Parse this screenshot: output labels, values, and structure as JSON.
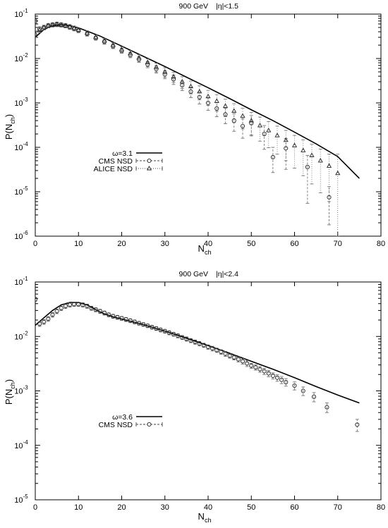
{
  "chart_data": [
    {
      "type": "line",
      "title": "900 GeV",
      "subtitle": "|η|<1.5",
      "xlabel": "N",
      "xlabel_sub": "ch",
      "ylabel": "P(N",
      "ylabel_sub": "ch",
      "ylabel_tail": ")",
      "xlim": [
        0,
        80
      ],
      "ylim": [
        1e-06,
        0.1
      ],
      "yscale": "log",
      "xticks": [
        "0",
        "10",
        "20",
        "30",
        "40",
        "50",
        "60",
        "70",
        "80"
      ],
      "yticks": [
        {
          "base": "10",
          "exp": "-1"
        },
        {
          "base": "10",
          "exp": "-2"
        },
        {
          "base": "10",
          "exp": "-3"
        },
        {
          "base": "10",
          "exp": "-4"
        },
        {
          "base": "10",
          "exp": "-5"
        },
        {
          "base": "10",
          "exp": "-6"
        }
      ],
      "legend_position": "left",
      "series": [
        {
          "name": "ω=3.1",
          "style": "solid-line",
          "x": [
            0,
            2,
            4,
            6,
            8,
            10,
            15,
            20,
            25,
            30,
            35,
            40,
            45,
            50,
            55,
            60,
            65,
            70,
            75
          ],
          "y": [
            0.03,
            0.045,
            0.055,
            0.058,
            0.055,
            0.049,
            0.032,
            0.019,
            0.0112,
            0.0066,
            0.0038,
            0.0022,
            0.00125,
            0.0007,
            0.0004,
            0.00022,
            0.00012,
            6.2e-05,
            2e-05
          ]
        },
        {
          "name": "CMS NSD",
          "style": "circle-dashed",
          "x": [
            0,
            1,
            2,
            3,
            4,
            5,
            6,
            7,
            8,
            9,
            10,
            12,
            14,
            16,
            18,
            20,
            22,
            24,
            26,
            28,
            30,
            32,
            34,
            36,
            38,
            40,
            42,
            44,
            46,
            48,
            50,
            53,
            55,
            58,
            63,
            68
          ],
          "y": [
            0.07,
            0.046,
            0.05,
            0.055,
            0.058,
            0.06,
            0.058,
            0.055,
            0.051,
            0.047,
            0.043,
            0.036,
            0.029,
            0.024,
            0.019,
            0.015,
            0.012,
            0.0096,
            0.0074,
            0.0058,
            0.0044,
            0.0034,
            0.0025,
            0.0018,
            0.00135,
            0.001,
            0.00075,
            0.00055,
            0.0004,
            0.0003,
            0.00035,
            0.0002,
            6e-05,
            9.5e-05,
            3.6e-05,
            7.5e-06
          ],
          "err_low": [
            0.062,
            0.04,
            0.044,
            0.049,
            0.052,
            0.054,
            0.052,
            0.049,
            0.045,
            0.042,
            0.038,
            0.032,
            0.026,
            0.021,
            0.0167,
            0.0131,
            0.0104,
            0.0082,
            0.0062,
            0.0047,
            0.0035,
            0.0026,
            0.0019,
            0.00132,
            0.00095,
            0.00068,
            0.00049,
            0.00034,
            0.00023,
            0.00016,
            0.00018,
            9e-05,
            2.7e-05,
            3.2e-05,
            5.5e-06,
            1.8e-06
          ],
          "err_high": [
            0.078,
            0.052,
            0.056,
            0.061,
            0.064,
            0.066,
            0.064,
            0.061,
            0.057,
            0.052,
            0.048,
            0.04,
            0.032,
            0.027,
            0.0213,
            0.0169,
            0.0136,
            0.011,
            0.0086,
            0.0069,
            0.0053,
            0.0042,
            0.0031,
            0.00228,
            0.00175,
            0.00132,
            0.00101,
            0.00076,
            0.00057,
            0.00044,
            0.00052,
            0.00031,
            0.0001,
            0.000158,
            6.6e-05,
            1.3e-05
          ]
        },
        {
          "name": "ALICE NSD",
          "style": "triangle-dotted",
          "x": [
            0,
            1,
            2,
            3,
            4,
            5,
            6,
            7,
            8,
            9,
            10,
            12,
            14,
            16,
            18,
            20,
            22,
            24,
            26,
            28,
            30,
            32,
            34,
            36,
            38,
            40,
            42,
            44,
            46,
            48,
            50,
            52,
            54,
            56,
            58,
            60,
            62,
            64,
            66,
            68,
            70
          ],
          "y": [
            0.036,
            0.044,
            0.05,
            0.055,
            0.057,
            0.058,
            0.057,
            0.055,
            0.052,
            0.048,
            0.044,
            0.037,
            0.03,
            0.025,
            0.02,
            0.016,
            0.013,
            0.0104,
            0.0082,
            0.0064,
            0.005,
            0.0039,
            0.003,
            0.00235,
            0.0018,
            0.0014,
            0.0011,
            0.00085,
            0.00066,
            0.00051,
            0.0004,
            0.00031,
            0.00024,
            0.000185,
            0.000145,
            0.00011,
            8.5e-05,
            6.6e-05,
            5e-05,
            3.8e-05,
            2.6e-05
          ],
          "err_low": [
            0.03,
            0.038,
            0.044,
            0.049,
            0.051,
            0.052,
            0.051,
            0.049,
            0.046,
            0.042,
            0.039,
            0.032,
            0.026,
            0.0215,
            0.0172,
            0.0136,
            0.0109,
            0.0086,
            0.0066,
            0.005,
            0.0038,
            0.0029,
            0.0021,
            0.0016,
            0.00118,
            0.00088,
            0.00066,
            0.00049,
            0.00036,
            0.00026,
            0.00019,
            0.000138,
            9.8e-05,
            7e-05,
            5e-05,
            3.4e-05,
            2.3e-05,
            1.5e-05,
            9.5e-06,
            6e-06,
            1e-06
          ],
          "err_high": [
            0.042,
            0.05,
            0.056,
            0.061,
            0.063,
            0.064,
            0.063,
            0.061,
            0.058,
            0.054,
            0.049,
            0.042,
            0.034,
            0.0285,
            0.0228,
            0.0184,
            0.0151,
            0.0122,
            0.0098,
            0.0078,
            0.0062,
            0.0049,
            0.0039,
            0.0031,
            0.00242,
            0.00192,
            0.00154,
            0.00121,
            0.00096,
            0.00076,
            0.00061,
            0.00048,
            0.00038,
            0.0003,
            0.00024,
            0.000186,
            0.000147,
            0.000117,
            9.1e-05,
            7e-05,
            7e-05
          ]
        }
      ]
    },
    {
      "type": "line",
      "title": "900 GeV",
      "subtitle": "|η|<2.4",
      "xlabel": "N",
      "xlabel_sub": "ch",
      "ylabel": "P(N",
      "ylabel_sub": "ch",
      "ylabel_tail": ")",
      "xlim": [
        0,
        80
      ],
      "ylim": [
        1e-05,
        0.1
      ],
      "yscale": "log",
      "xticks": [
        "0",
        "10",
        "20",
        "30",
        "40",
        "50",
        "60",
        "70",
        "80"
      ],
      "yticks": [
        {
          "base": "10",
          "exp": "-1"
        },
        {
          "base": "10",
          "exp": "-2"
        },
        {
          "base": "10",
          "exp": "-3"
        },
        {
          "base": "10",
          "exp": "-4"
        },
        {
          "base": "10",
          "exp": "-5"
        }
      ],
      "legend_position": "left",
      "series": [
        {
          "name": "ω=3.6",
          "style": "solid-line",
          "x": [
            0,
            2,
            4,
            6,
            8,
            10,
            12,
            14,
            16,
            18,
            20,
            25,
            30,
            35,
            40,
            45,
            50,
            55,
            60,
            65,
            70,
            75
          ],
          "y": [
            0.016,
            0.022,
            0.03,
            0.038,
            0.042,
            0.042,
            0.038,
            0.031,
            0.026,
            0.023,
            0.021,
            0.0165,
            0.0125,
            0.0093,
            0.0068,
            0.0049,
            0.0035,
            0.0025,
            0.00175,
            0.0012,
            0.00084,
            0.0006
          ]
        },
        {
          "name": "CMS NSD",
          "style": "circle-dashed",
          "x": [
            0,
            1,
            2,
            3,
            4,
            5,
            6,
            7,
            8,
            9,
            10,
            11,
            12,
            13,
            14,
            15,
            16,
            17,
            18,
            19,
            20,
            21,
            22,
            23,
            24,
            25,
            26,
            27,
            28,
            29,
            30,
            31,
            32,
            33,
            34,
            35,
            36,
            37,
            38,
            39,
            40,
            41,
            42,
            43,
            44,
            45,
            46,
            47,
            48,
            49,
            50,
            51,
            52,
            53,
            54,
            55,
            56,
            57,
            58,
            60,
            62,
            64.5,
            67.5,
            74.5
          ],
          "y": [
            0.048,
            0.017,
            0.0185,
            0.021,
            0.025,
            0.029,
            0.033,
            0.036,
            0.038,
            0.039,
            0.039,
            0.038,
            0.036,
            0.033,
            0.031,
            0.029,
            0.027,
            0.025,
            0.0235,
            0.0225,
            0.0215,
            0.0205,
            0.0195,
            0.0185,
            0.0175,
            0.0166,
            0.0157,
            0.0148,
            0.014,
            0.0132,
            0.0125,
            0.0117,
            0.011,
            0.0103,
            0.0096,
            0.009,
            0.0084,
            0.0079,
            0.0074,
            0.0069,
            0.0064,
            0.006,
            0.0056,
            0.0052,
            0.0048,
            0.0044,
            0.0041,
            0.0038,
            0.0035,
            0.0032,
            0.0029,
            0.0027,
            0.0025,
            0.0023,
            0.0021,
            0.0019,
            0.00175,
            0.0016,
            0.00145,
            0.00125,
            0.001,
            0.00078,
            0.0005,
            0.00024
          ],
          "err_low": [
            0.044,
            0.0153,
            0.0167,
            0.019,
            0.0226,
            0.0262,
            0.0299,
            0.0327,
            0.0346,
            0.0356,
            0.0356,
            0.0347,
            0.0329,
            0.0302,
            0.0284,
            0.0265,
            0.0247,
            0.0229,
            0.0215,
            0.0206,
            0.0197,
            0.0188,
            0.0179,
            0.017,
            0.0161,
            0.0153,
            0.0145,
            0.0136,
            0.0129,
            0.0121,
            0.0115,
            0.0107,
            0.0101,
            0.0094,
            0.0088,
            0.0082,
            0.0077,
            0.0072,
            0.0067,
            0.0063,
            0.0058,
            0.0054,
            0.0051,
            0.0047,
            0.0043,
            0.004,
            0.0037,
            0.0034,
            0.0031,
            0.0028,
            0.0026,
            0.0024,
            0.0022,
            0.002,
            0.00182,
            0.00165,
            0.0015,
            0.00136,
            0.00122,
            0.00104,
            0.00082,
            0.00063,
            0.0004,
            0.00018
          ],
          "err_high": [
            0.052,
            0.0187,
            0.0203,
            0.023,
            0.0274,
            0.0318,
            0.0361,
            0.0393,
            0.0414,
            0.0424,
            0.0424,
            0.0413,
            0.0391,
            0.0358,
            0.0336,
            0.0315,
            0.0293,
            0.0271,
            0.0255,
            0.0244,
            0.0233,
            0.0222,
            0.0211,
            0.02,
            0.0189,
            0.0179,
            0.0169,
            0.016,
            0.0151,
            0.0143,
            0.0135,
            0.0127,
            0.0119,
            0.0112,
            0.0104,
            0.0098,
            0.0091,
            0.0086,
            0.0081,
            0.0075,
            0.007,
            0.0066,
            0.0061,
            0.0057,
            0.0053,
            0.0048,
            0.0045,
            0.0042,
            0.0039,
            0.0036,
            0.0032,
            0.003,
            0.0028,
            0.0026,
            0.00238,
            0.00215,
            0.002,
            0.00184,
            0.00168,
            0.00146,
            0.00118,
            0.00093,
            0.0006,
            0.0003
          ]
        }
      ]
    }
  ]
}
